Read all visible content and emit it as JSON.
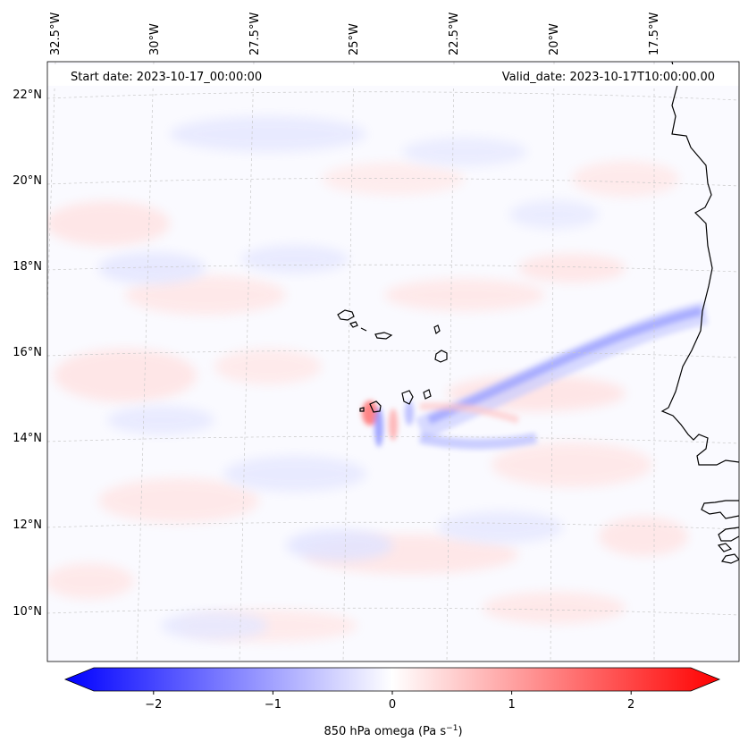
{
  "map": {
    "start_date": "Start date: 2023-10-17_00:00:00",
    "valid_date": "Valid_date: 2023-10-17T10:00:00.00",
    "lon_labels": [
      "32.5°W",
      "30°W",
      "27.5°W",
      "25°W",
      "22.5°W",
      "20°W",
      "17.5°W"
    ],
    "lat_labels": [
      "22°N",
      "20°N",
      "18°N",
      "16°N",
      "14°N",
      "12°N",
      "10°N"
    ],
    "variable": "850 hPa omega",
    "grid": true,
    "coastline_color": "#000000"
  },
  "colorbar": {
    "label": "850 hPa omega (Pa s",
    "label_exp": "−1",
    "label_close": ")",
    "ticks": [
      "−2",
      "−1",
      "0",
      "1",
      "2"
    ],
    "tick_values": [
      -2,
      -1,
      0,
      1,
      2
    ],
    "range": [
      -2.5,
      2.5
    ],
    "extend": "both",
    "colormap": "bwr",
    "low_color": "#0000ff",
    "mid_color": "#ffffff",
    "high_color": "#ff0000"
  }
}
